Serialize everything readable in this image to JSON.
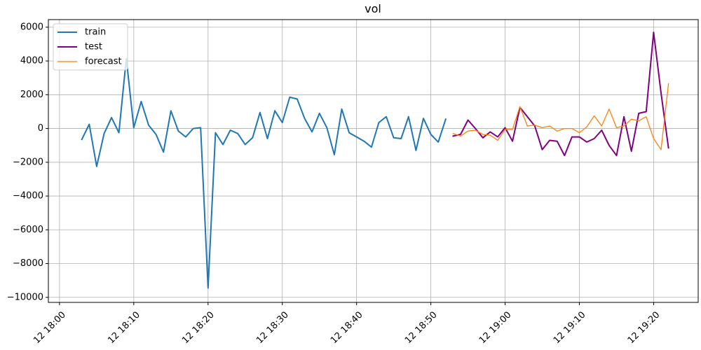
{
  "chart_data": {
    "type": "line",
    "title": "vol",
    "xlabel": "",
    "ylabel": "",
    "x_axis": "time (minutes since 12 18:00)",
    "xlim": [
      -1.5,
      86
    ],
    "ylim": [
      -10300,
      6450
    ],
    "grid": true,
    "legend_position": "top-left",
    "x_ticks": [
      {
        "value": 0,
        "label": "12 18:00"
      },
      {
        "value": 10,
        "label": "12 18:10"
      },
      {
        "value": 20,
        "label": "12 18:20"
      },
      {
        "value": 30,
        "label": "12 18:30"
      },
      {
        "value": 40,
        "label": "12 18:40"
      },
      {
        "value": 50,
        "label": "12 18:50"
      },
      {
        "value": 60,
        "label": "12 19:00"
      },
      {
        "value": 70,
        "label": "12 19:10"
      },
      {
        "value": 80,
        "label": "12 19:20"
      }
    ],
    "y_ticks": [
      {
        "value": 6000,
        "label": "6000"
      },
      {
        "value": 4000,
        "label": "4000"
      },
      {
        "value": 2000,
        "label": "2000"
      },
      {
        "value": 0,
        "label": "0"
      },
      {
        "value": -2000,
        "label": "−2000"
      },
      {
        "value": -4000,
        "label": "−4000"
      },
      {
        "value": -6000,
        "label": "−6000"
      },
      {
        "value": -8000,
        "label": "−8000"
      },
      {
        "value": -10000,
        "label": "−10000"
      }
    ],
    "series": [
      {
        "name": "train",
        "color": "#1f77b4",
        "stroke_width": 2,
        "x": [
          3,
          4,
          5,
          6,
          7,
          8,
          9,
          10,
          11,
          12,
          13,
          14,
          15,
          16,
          17,
          18,
          19,
          20,
          21,
          22,
          23,
          24,
          25,
          26,
          27,
          28,
          29,
          30,
          31,
          32,
          33,
          34,
          35,
          36,
          37,
          38,
          39,
          40,
          41,
          42,
          43,
          44,
          45,
          46,
          47,
          48,
          49,
          50,
          51,
          52
        ],
        "y": [
          -650,
          250,
          -2250,
          -300,
          650,
          -250,
          4150,
          50,
          1600,
          200,
          -350,
          -1400,
          1050,
          -150,
          -500,
          0,
          50,
          -9450,
          -250,
          -950,
          -100,
          -300,
          -950,
          -550,
          950,
          -600,
          1050,
          350,
          1850,
          1750,
          600,
          -200,
          900,
          50,
          -1550,
          1150,
          -250,
          -500,
          -750,
          -1100,
          350,
          700,
          -550,
          -600,
          700,
          -1300,
          600,
          -350,
          -800,
          550
        ]
      },
      {
        "name": "test",
        "color": "#800080",
        "stroke_width": 2,
        "x": [
          53,
          54,
          55,
          56,
          57,
          58,
          59,
          60,
          61,
          62,
          63,
          64,
          65,
          66,
          67,
          68,
          69,
          70,
          71,
          72,
          73,
          74,
          75,
          76,
          77,
          78,
          79,
          80,
          81,
          82
        ],
        "y": [
          -450,
          -350,
          500,
          0,
          -550,
          -200,
          -500,
          50,
          -750,
          1250,
          700,
          150,
          -1250,
          -700,
          -750,
          -1600,
          -500,
          -500,
          -800,
          -600,
          -100,
          -1000,
          -1600,
          700,
          -1350,
          900,
          1000,
          5700,
          2100,
          -1150
        ]
      },
      {
        "name": "forecast",
        "color": "#ff7f0e",
        "stroke_width": 1.3,
        "x": [
          53,
          54,
          55,
          56,
          57,
          58,
          59,
          60,
          61,
          62,
          63,
          64,
          65,
          66,
          67,
          68,
          69,
          70,
          71,
          72,
          73,
          74,
          75,
          76,
          77,
          78,
          79,
          80,
          81,
          82
        ],
        "y": [
          -300,
          -450,
          -150,
          -100,
          -350,
          -400,
          -700,
          -50,
          -50,
          1300,
          150,
          200,
          50,
          150,
          -150,
          0,
          0,
          -250,
          100,
          750,
          150,
          1150,
          50,
          150,
          550,
          450,
          700,
          -600,
          -1250,
          2650
        ]
      }
    ]
  }
}
